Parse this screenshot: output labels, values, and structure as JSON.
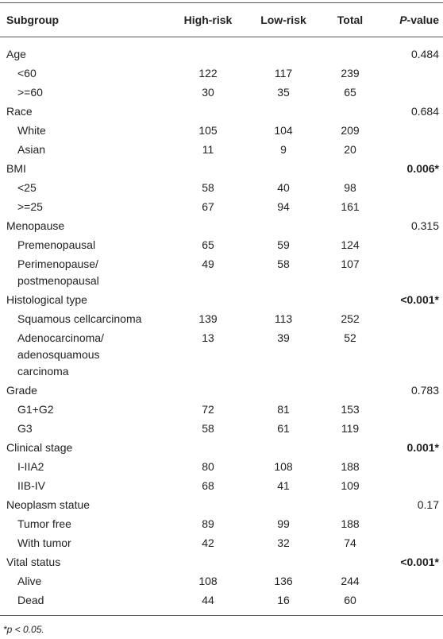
{
  "table": {
    "header": [
      "Subgroup",
      "High-risk",
      "Low-risk",
      "Total",
      {
        "italic": "P",
        "text": "-value"
      }
    ],
    "groups": [
      {
        "label": "Age",
        "p_value": "0.484",
        "p_bold": false,
        "rows": [
          [
            "<60",
            122,
            117,
            239
          ],
          [
            ">=60",
            30,
            35,
            65
          ]
        ]
      },
      {
        "label": "Race",
        "p_value": "0.684",
        "p_bold": false,
        "rows": [
          [
            "White",
            105,
            104,
            209
          ],
          [
            "Asian",
            11,
            9,
            20
          ]
        ]
      },
      {
        "label": "BMI",
        "p_value": "0.006*",
        "p_bold": true,
        "rows": [
          [
            "<25",
            58,
            40,
            98
          ],
          [
            ">=25",
            67,
            94,
            161
          ]
        ]
      },
      {
        "label": "Menopause",
        "p_value": "0.315",
        "p_bold": false,
        "rows": [
          [
            "Premenopausal",
            65,
            59,
            124
          ],
          [
            "Perimenopause/\npostmenopausal",
            49,
            58,
            107
          ]
        ]
      },
      {
        "label": "Histological type",
        "p_value": "<0.001*",
        "p_bold": true,
        "rows": [
          [
            "Squamous cellcarcinoma",
            139,
            113,
            252
          ],
          [
            "Adenocarcinoma/\nadenosquamous\ncarcinoma",
            13,
            39,
            52
          ]
        ]
      },
      {
        "label": "Grade",
        "p_value": "0.783",
        "p_bold": false,
        "rows": [
          [
            "G1+G2",
            72,
            81,
            153
          ],
          [
            "G3",
            58,
            61,
            119
          ]
        ]
      },
      {
        "label": "Clinical stage",
        "p_value": "0.001*",
        "p_bold": true,
        "rows": [
          [
            "I-IIA2",
            80,
            108,
            188
          ],
          [
            "IIB-IV",
            68,
            41,
            109
          ]
        ]
      },
      {
        "label": "Neoplasm statue",
        "p_value": "0.17",
        "p_bold": false,
        "rows": [
          [
            "Tumor free",
            89,
            99,
            188
          ],
          [
            "With tumor",
            42,
            32,
            74
          ]
        ]
      },
      {
        "label": "Vital status",
        "p_value": "<0.001*",
        "p_bold": true,
        "rows": [
          [
            "Alive",
            108,
            136,
            244
          ],
          [
            "Dead",
            44,
            16,
            60
          ]
        ]
      }
    ],
    "footnote": "*p < 0.05."
  }
}
